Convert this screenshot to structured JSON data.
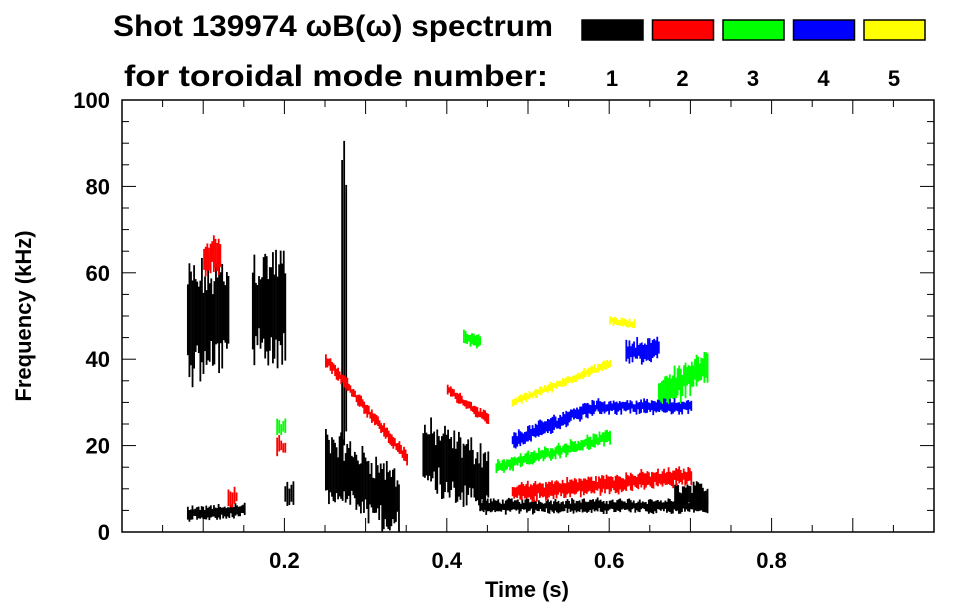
{
  "chart_data": {
    "type": "heatmap",
    "title_line1": "Shot 139974 ωB(ω) spectrum",
    "title_line2": "for toroidal mode number:",
    "xlabel": "Time (s)",
    "ylabel": "Frequency (kHz)",
    "xlim": [
      0,
      1.0
    ],
    "ylim": [
      0,
      100
    ],
    "xticks": [
      0.2,
      0.4,
      0.6,
      0.8
    ],
    "xtick_labels": [
      "0.2",
      "0.4",
      "0.6",
      "0.8"
    ],
    "yticks": [
      0,
      20,
      40,
      60,
      80,
      100
    ],
    "ytick_labels": [
      "0",
      "20",
      "40",
      "60",
      "80",
      "100"
    ],
    "legend": [
      {
        "label": "1",
        "color": "#000000"
      },
      {
        "label": "2",
        "color": "#ff0000"
      },
      {
        "label": "3",
        "color": "#00ff00"
      },
      {
        "label": "4",
        "color": "#0000ff"
      },
      {
        "label": "5",
        "color": "#ffff00"
      }
    ],
    "modes": [
      {
        "mode": 1,
        "color": "#000000",
        "tracks": [
          {
            "t": [
              0.08,
              0.13
            ],
            "f": [
              48,
              50
            ],
            "halfwidth": 12
          },
          {
            "t": [
              0.16,
              0.2
            ],
            "f": [
              52,
              52
            ],
            "halfwidth": 12
          },
          {
            "t": [
              0.25,
              0.34
            ],
            "f": [
              16,
              7
            ],
            "halfwidth": 7
          },
          {
            "t": [
              0.37,
              0.45
            ],
            "f": [
              18,
              12
            ],
            "halfwidth": 7
          },
          {
            "t": [
              0.44,
              0.72
            ],
            "f": [
              6,
              6
            ],
            "halfwidth": 1.5
          },
          {
            "t": [
              0.08,
              0.15
            ],
            "f": [
              4,
              5
            ],
            "halfwidth": 1.5
          },
          {
            "t": [
              0.68,
              0.72
            ],
            "f": [
              8,
              8
            ],
            "halfwidth": 3
          },
          {
            "t": [
              0.27,
              0.275
            ],
            "f": [
              60,
              60
            ],
            "halfwidth": 35
          },
          {
            "t": [
              0.2,
              0.21
            ],
            "f": [
              9,
              9
            ],
            "halfwidth": 3
          }
        ]
      },
      {
        "mode": 2,
        "color": "#ff0000",
        "tracks": [
          {
            "t": [
              0.1,
              0.12
            ],
            "f": [
              63,
              65
            ],
            "halfwidth": 4
          },
          {
            "t": [
              0.25,
              0.35
            ],
            "f": [
              40,
              17
            ],
            "halfwidth": 1.5
          },
          {
            "t": [
              0.4,
              0.45
            ],
            "f": [
              33,
              26
            ],
            "halfwidth": 1.2
          },
          {
            "t": [
              0.48,
              0.7
            ],
            "f": [
              9,
              13
            ],
            "halfwidth": 2
          },
          {
            "t": [
              0.19,
              0.2
            ],
            "f": [
              20,
              20
            ],
            "halfwidth": 2
          },
          {
            "t": [
              0.13,
              0.14
            ],
            "f": [
              8,
              8
            ],
            "halfwidth": 2
          }
        ]
      },
      {
        "mode": 3,
        "color": "#00ff00",
        "tracks": [
          {
            "t": [
              0.46,
              0.6
            ],
            "f": [
              15,
              22
            ],
            "halfwidth": 1.5
          },
          {
            "t": [
              0.66,
              0.72
            ],
            "f": [
              32,
              38
            ],
            "halfwidth": 4
          },
          {
            "t": [
              0.42,
              0.44
            ],
            "f": [
              45,
              44
            ],
            "halfwidth": 1.5
          },
          {
            "t": [
              0.19,
              0.2
            ],
            "f": [
              24,
              24
            ],
            "halfwidth": 2
          }
        ]
      },
      {
        "mode": 4,
        "color": "#0000ff",
        "tracks": [
          {
            "t": [
              0.48,
              0.58
            ],
            "f": [
              21,
              29
            ],
            "halfwidth": 1.8
          },
          {
            "t": [
              0.58,
              0.7
            ],
            "f": [
              29,
              29
            ],
            "halfwidth": 1.5
          },
          {
            "t": [
              0.62,
              0.66
            ],
            "f": [
              42,
              42
            ],
            "halfwidth": 2.5
          }
        ]
      },
      {
        "mode": 5,
        "color": "#ffff00",
        "tracks": [
          {
            "t": [
              0.48,
              0.6
            ],
            "f": [
              30,
              39
            ],
            "halfwidth": 1
          },
          {
            "t": [
              0.6,
              0.63
            ],
            "f": [
              49,
              48
            ],
            "halfwidth": 1
          }
        ]
      }
    ]
  }
}
